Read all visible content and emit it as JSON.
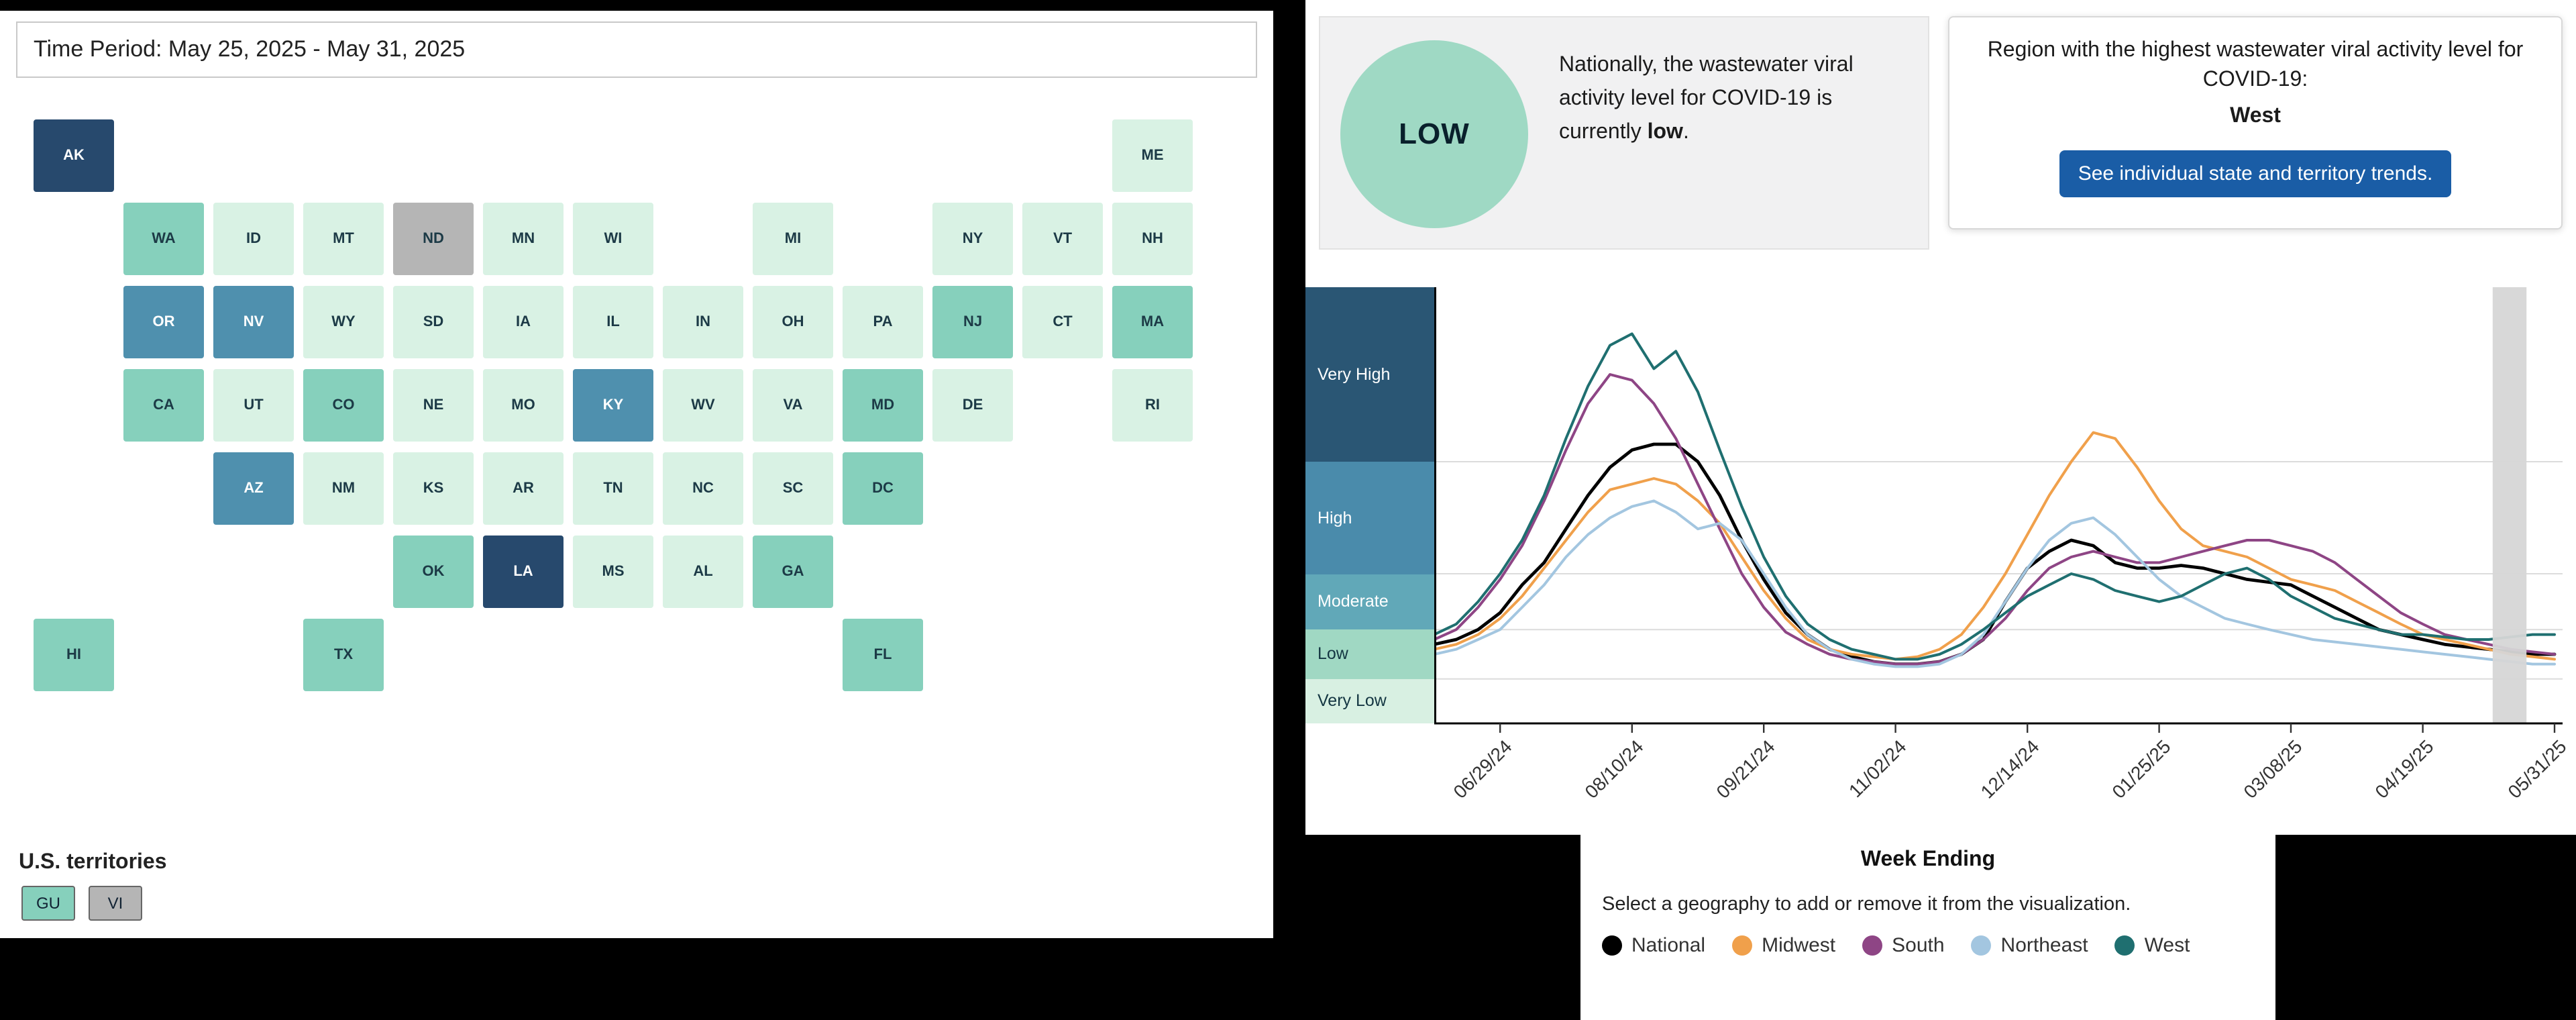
{
  "map_panel": {
    "time_period_label": "Time Period: May 25, 2025 - May 31, 2025",
    "territories_label": "U.S. territories",
    "level_colors": {
      "very_high": "#27496d",
      "high": "#4f90ae",
      "moderate": "#86d0bc",
      "low": "#d9f2e4",
      "no_data": "#b5b5b5"
    },
    "states": [
      {
        "abbr": "AK",
        "level": "very_high",
        "hatched": false,
        "col": 0,
        "row": 0
      },
      {
        "abbr": "ME",
        "level": "low",
        "hatched": false,
        "col": 12,
        "row": 0
      },
      {
        "abbr": "WA",
        "level": "moderate",
        "hatched": true,
        "col": 1,
        "row": 1
      },
      {
        "abbr": "ID",
        "level": "low",
        "hatched": false,
        "col": 2,
        "row": 1
      },
      {
        "abbr": "MT",
        "level": "low",
        "hatched": true,
        "col": 3,
        "row": 1
      },
      {
        "abbr": "ND",
        "level": "no_data",
        "hatched": false,
        "col": 4,
        "row": 1
      },
      {
        "abbr": "MN",
        "level": "low",
        "hatched": false,
        "col": 5,
        "row": 1
      },
      {
        "abbr": "WI",
        "level": "low",
        "hatched": true,
        "col": 6,
        "row": 1
      },
      {
        "abbr": "MI",
        "level": "low",
        "hatched": true,
        "col": 8,
        "row": 1
      },
      {
        "abbr": "NY",
        "level": "low",
        "hatched": false,
        "col": 10,
        "row": 1
      },
      {
        "abbr": "VT",
        "level": "low",
        "hatched": false,
        "col": 11,
        "row": 1
      },
      {
        "abbr": "NH",
        "level": "low",
        "hatched": false,
        "col": 12,
        "row": 1
      },
      {
        "abbr": "OR",
        "level": "high",
        "hatched": false,
        "col": 1,
        "row": 2
      },
      {
        "abbr": "NV",
        "level": "high",
        "hatched": false,
        "col": 2,
        "row": 2
      },
      {
        "abbr": "WY",
        "level": "low",
        "hatched": false,
        "col": 3,
        "row": 2
      },
      {
        "abbr": "SD",
        "level": "low",
        "hatched": false,
        "col": 4,
        "row": 2
      },
      {
        "abbr": "IA",
        "level": "low",
        "hatched": false,
        "col": 5,
        "row": 2
      },
      {
        "abbr": "IL",
        "level": "low",
        "hatched": false,
        "col": 6,
        "row": 2
      },
      {
        "abbr": "IN",
        "level": "low",
        "hatched": false,
        "col": 7,
        "row": 2
      },
      {
        "abbr": "OH",
        "level": "low",
        "hatched": false,
        "col": 8,
        "row": 2
      },
      {
        "abbr": "PA",
        "level": "low",
        "hatched": true,
        "col": 9,
        "row": 2
      },
      {
        "abbr": "NJ",
        "level": "moderate",
        "hatched": true,
        "col": 10,
        "row": 2
      },
      {
        "abbr": "CT",
        "level": "low",
        "hatched": true,
        "col": 11,
        "row": 2
      },
      {
        "abbr": "MA",
        "level": "moderate",
        "hatched": false,
        "col": 12,
        "row": 2
      },
      {
        "abbr": "CA",
        "level": "moderate",
        "hatched": false,
        "col": 1,
        "row": 3
      },
      {
        "abbr": "UT",
        "level": "low",
        "hatched": false,
        "col": 2,
        "row": 3
      },
      {
        "abbr": "CO",
        "level": "moderate",
        "hatched": false,
        "col": 3,
        "row": 3
      },
      {
        "abbr": "NE",
        "level": "low",
        "hatched": false,
        "col": 4,
        "row": 3
      },
      {
        "abbr": "MO",
        "level": "low",
        "hatched": false,
        "col": 5,
        "row": 3
      },
      {
        "abbr": "KY",
        "level": "high",
        "hatched": false,
        "col": 6,
        "row": 3
      },
      {
        "abbr": "WV",
        "level": "low",
        "hatched": false,
        "col": 7,
        "row": 3
      },
      {
        "abbr": "VA",
        "level": "low",
        "hatched": false,
        "col": 8,
        "row": 3
      },
      {
        "abbr": "MD",
        "level": "moderate",
        "hatched": true,
        "col": 9,
        "row": 3
      },
      {
        "abbr": "DE",
        "level": "low",
        "hatched": false,
        "col": 10,
        "row": 3
      },
      {
        "abbr": "RI",
        "level": "low",
        "hatched": false,
        "col": 12,
        "row": 3
      },
      {
        "abbr": "AZ",
        "level": "high",
        "hatched": false,
        "col": 2,
        "row": 4
      },
      {
        "abbr": "NM",
        "level": "low",
        "hatched": false,
        "col": 3,
        "row": 4
      },
      {
        "abbr": "KS",
        "level": "low",
        "hatched": false,
        "col": 4,
        "row": 4
      },
      {
        "abbr": "AR",
        "level": "low",
        "hatched": false,
        "col": 5,
        "row": 4
      },
      {
        "abbr": "TN",
        "level": "low",
        "hatched": false,
        "col": 6,
        "row": 4
      },
      {
        "abbr": "NC",
        "level": "low",
        "hatched": false,
        "col": 7,
        "row": 4
      },
      {
        "abbr": "SC",
        "level": "low",
        "hatched": false,
        "col": 8,
        "row": 4
      },
      {
        "abbr": "DC",
        "level": "moderate",
        "hatched": false,
        "col": 9,
        "row": 4
      },
      {
        "abbr": "OK",
        "level": "moderate",
        "hatched": true,
        "col": 4,
        "row": 5
      },
      {
        "abbr": "LA",
        "level": "very_high",
        "hatched": false,
        "col": 5,
        "row": 5
      },
      {
        "abbr": "MS",
        "level": "low",
        "hatched": false,
        "col": 6,
        "row": 5
      },
      {
        "abbr": "AL",
        "level": "low",
        "hatched": false,
        "col": 7,
        "row": 5
      },
      {
        "abbr": "GA",
        "level": "moderate",
        "hatched": false,
        "col": 8,
        "row": 5
      },
      {
        "abbr": "HI",
        "level": "moderate",
        "hatched": false,
        "col": 0,
        "row": 6
      },
      {
        "abbr": "TX",
        "level": "moderate",
        "hatched": false,
        "col": 3,
        "row": 6
      },
      {
        "abbr": "FL",
        "level": "moderate",
        "hatched": false,
        "col": 9,
        "row": 6
      }
    ],
    "territories": [
      {
        "abbr": "GU",
        "level": "moderate"
      },
      {
        "abbr": "VI",
        "level": "no_data"
      }
    ]
  },
  "summary": {
    "badge_level": "LOW",
    "badge_color": "#9fd9c4",
    "text_prefix": "Nationally, the wastewater viral activity level for COVID-19 is currently ",
    "text_bold": "low",
    "text_suffix": "."
  },
  "region_box": {
    "title": "Region with the highest wastewater viral activity level for COVID-19:",
    "region": "West",
    "button_label": "See individual state and territory trends.",
    "button_color": "#1a5da6"
  },
  "chart_data": {
    "type": "line",
    "xlabel": "Week Ending",
    "legend_hint": "Select a geography to add or remove it from the visualization.",
    "x_tick_labels": [
      "06/29/24",
      "08/10/24",
      "09/21/24",
      "11/02/24",
      "12/14/24",
      "01/25/25",
      "03/08/25",
      "04/19/25",
      "05/31/25"
    ],
    "x_tick_indices": [
      3,
      9,
      15,
      21,
      27,
      33,
      39,
      45,
      51
    ],
    "n_points": 52,
    "x_range_dates": [
      "06/08/24",
      "05/31/25"
    ],
    "value_anchors": [
      0,
      1,
      2,
      3,
      5,
      8
    ],
    "anchor_fracs": [
      0,
      0.102,
      0.215,
      0.343,
      0.6,
      1
    ],
    "bands": [
      {
        "label": "Very High",
        "color": "#2a5674",
        "text_color": "#ffffff",
        "value_range": [
          5,
          8
        ]
      },
      {
        "label": "High",
        "color": "#4a8bab",
        "text_color": "#ffffff",
        "value_range": [
          3,
          5
        ]
      },
      {
        "label": "Moderate",
        "color": "#61a8b8",
        "text_color": "#ffffff",
        "value_range": [
          2,
          3
        ]
      },
      {
        "label": "Low",
        "color": "#a0d8c3",
        "text_color": "#143642",
        "value_range": [
          1,
          2
        ]
      },
      {
        "label": "Very Low",
        "color": "#d8f0e2",
        "text_color": "#143642",
        "value_range": [
          0,
          1
        ]
      }
    ],
    "highlight_band": {
      "x_frac_from": 0.938,
      "x_frac_to": 0.968,
      "color": "#d6d6d6"
    },
    "series": [
      {
        "name": "National",
        "color": "#000000",
        "values": [
          1.7,
          1.8,
          2.0,
          2.3,
          2.8,
          3.2,
          3.8,
          4.4,
          4.9,
          5.2,
          5.3,
          5.3,
          5.0,
          4.4,
          3.6,
          2.9,
          2.3,
          1.9,
          1.6,
          1.45,
          1.35,
          1.3,
          1.3,
          1.35,
          1.5,
          1.8,
          2.5,
          3.1,
          3.4,
          3.6,
          3.5,
          3.2,
          3.1,
          3.1,
          3.15,
          3.1,
          3.0,
          2.9,
          2.85,
          2.8,
          2.6,
          2.4,
          2.2,
          2.0,
          1.9,
          1.8,
          1.7,
          1.65,
          1.6,
          1.55,
          1.5,
          1.5
        ]
      },
      {
        "name": "Midwest",
        "color": "#f0a04b",
        "values": [
          1.6,
          1.7,
          1.9,
          2.2,
          2.6,
          3.1,
          3.6,
          4.1,
          4.5,
          4.6,
          4.7,
          4.6,
          4.3,
          3.9,
          3.3,
          2.7,
          2.2,
          1.8,
          1.6,
          1.5,
          1.45,
          1.4,
          1.45,
          1.6,
          1.9,
          2.4,
          3.0,
          3.7,
          4.4,
          5.0,
          5.5,
          5.4,
          4.9,
          4.3,
          3.8,
          3.5,
          3.4,
          3.3,
          3.1,
          2.9,
          2.8,
          2.7,
          2.5,
          2.3,
          2.1,
          1.9,
          1.8,
          1.7,
          1.6,
          1.5,
          1.45,
          1.4
        ]
      },
      {
        "name": "South",
        "color": "#8e4585",
        "values": [
          1.8,
          2.0,
          2.4,
          2.9,
          3.5,
          4.3,
          5.2,
          6.0,
          6.5,
          6.4,
          6.0,
          5.4,
          4.6,
          3.8,
          3.0,
          2.4,
          1.95,
          1.7,
          1.5,
          1.4,
          1.35,
          1.3,
          1.3,
          1.35,
          1.5,
          1.8,
          2.2,
          2.7,
          3.1,
          3.3,
          3.4,
          3.3,
          3.2,
          3.2,
          3.3,
          3.4,
          3.5,
          3.6,
          3.6,
          3.5,
          3.4,
          3.2,
          2.9,
          2.6,
          2.3,
          2.1,
          1.9,
          1.8,
          1.7,
          1.6,
          1.55,
          1.5
        ]
      },
      {
        "name": "Northeast",
        "color": "#a3c6e0",
        "values": [
          1.5,
          1.6,
          1.8,
          2.0,
          2.4,
          2.8,
          3.3,
          3.7,
          4.0,
          4.2,
          4.3,
          4.1,
          3.8,
          3.9,
          3.6,
          3.0,
          2.4,
          1.9,
          1.6,
          1.4,
          1.3,
          1.25,
          1.25,
          1.3,
          1.5,
          1.9,
          2.5,
          3.1,
          3.6,
          3.9,
          4.0,
          3.7,
          3.3,
          2.9,
          2.6,
          2.4,
          2.2,
          2.1,
          2.0,
          1.9,
          1.8,
          1.75,
          1.7,
          1.65,
          1.6,
          1.55,
          1.5,
          1.45,
          1.4,
          1.35,
          1.3,
          1.3
        ]
      },
      {
        "name": "West",
        "color": "#1f6f70",
        "values": [
          1.9,
          2.1,
          2.5,
          3.0,
          3.6,
          4.4,
          5.4,
          6.3,
          7.0,
          7.2,
          6.6,
          6.9,
          6.2,
          5.2,
          4.2,
          3.3,
          2.6,
          2.1,
          1.8,
          1.6,
          1.5,
          1.4,
          1.4,
          1.5,
          1.7,
          2.0,
          2.3,
          2.6,
          2.8,
          3.0,
          2.9,
          2.7,
          2.6,
          2.5,
          2.6,
          2.8,
          3.0,
          3.1,
          2.9,
          2.6,
          2.4,
          2.2,
          2.1,
          2.0,
          1.9,
          1.9,
          1.85,
          1.8,
          1.8,
          1.85,
          1.9,
          1.9
        ]
      }
    ]
  }
}
